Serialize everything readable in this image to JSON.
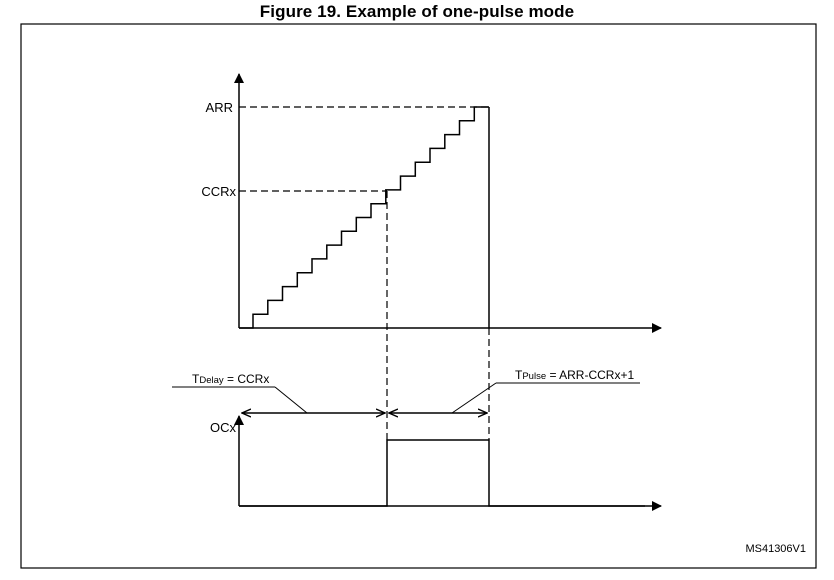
{
  "figure": {
    "title": "Figure 19. Example of one-pulse mode",
    "code": "MS41306V1"
  },
  "labels": {
    "arr": "ARR",
    "ccrx": "CCRx",
    "ocx": "OCx",
    "tdelay_prefix": "T",
    "tdelay_sub": "Delay",
    "tdelay_rest": " = CCRx",
    "tpulse_prefix": "T",
    "tpulse_sub": "Pulse",
    "tpulse_rest": " = ARR-CCRx+1"
  },
  "counter_staircase": {
    "steps": 16,
    "ccrx_step": 10,
    "arr_step": 16
  },
  "output_waveform": {
    "levels": [
      "low",
      "high",
      "low"
    ]
  }
}
